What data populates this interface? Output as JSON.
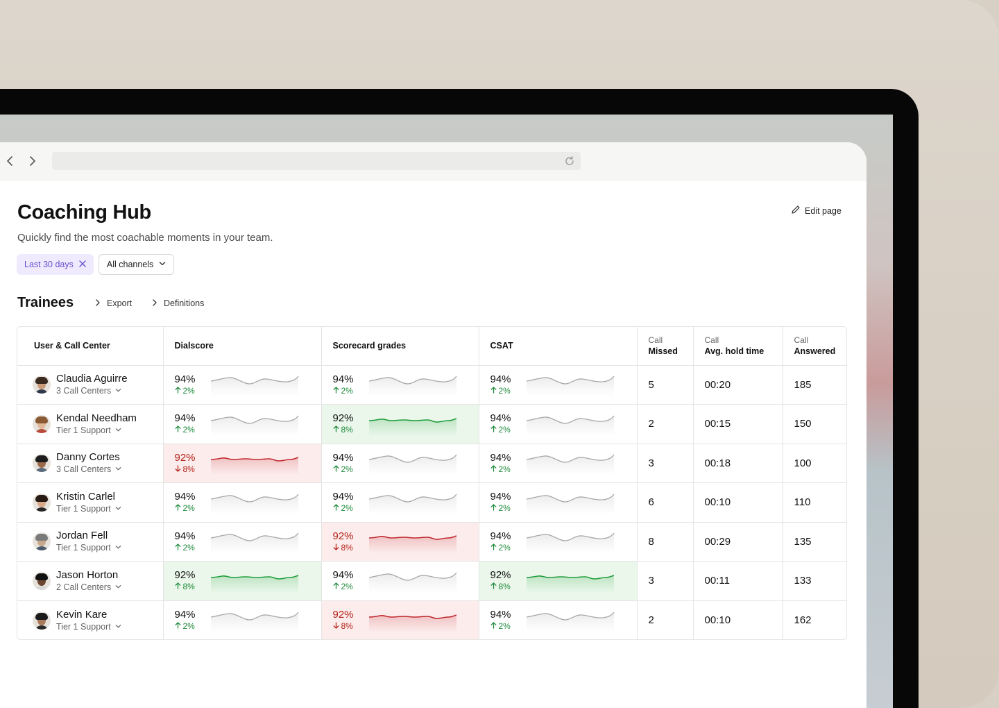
{
  "page": {
    "title": "Coaching Hub",
    "subtitle": "Quickly find the most coachable moments in your team.",
    "edit_label": "Edit page"
  },
  "filters": {
    "date_label": "Last 30 days",
    "channel_label": "All channels"
  },
  "section": {
    "title": "Trainees",
    "export_label": "Export",
    "definitions_label": "Definitions"
  },
  "table": {
    "headers": {
      "user": "User & Call Center",
      "dialscore": "Dialscore",
      "scorecard": "Scorecard grades",
      "csat": "CSAT",
      "missed_top": "Call",
      "missed_bottom": "Missed",
      "hold_top": "Call",
      "hold_bottom": "Avg. hold time",
      "answered_top": "Call",
      "answered_bottom": "Answered"
    },
    "rows": [
      {
        "name": "Claudia Aguirre",
        "team": "3 Call Centers",
        "dial": {
          "value": "94%",
          "delta": "2%",
          "trend": "up",
          "state": "neutral"
        },
        "score": {
          "value": "94%",
          "delta": "2%",
          "trend": "up",
          "state": "neutral"
        },
        "csat": {
          "value": "94%",
          "delta": "2%",
          "trend": "up",
          "state": "neutral"
        },
        "missed": "5",
        "hold": "00:20",
        "answered": "185"
      },
      {
        "name": "Kendal Needham",
        "team": "Tier 1 Support",
        "dial": {
          "value": "94%",
          "delta": "2%",
          "trend": "up",
          "state": "neutral"
        },
        "score": {
          "value": "92%",
          "delta": "8%",
          "trend": "up",
          "state": "good"
        },
        "csat": {
          "value": "94%",
          "delta": "2%",
          "trend": "up",
          "state": "neutral"
        },
        "missed": "2",
        "hold": "00:15",
        "answered": "150"
      },
      {
        "name": "Danny Cortes",
        "team": "3 Call Centers",
        "dial": {
          "value": "92%",
          "delta": "8%",
          "trend": "down",
          "state": "bad"
        },
        "score": {
          "value": "94%",
          "delta": "2%",
          "trend": "up",
          "state": "neutral"
        },
        "csat": {
          "value": "94%",
          "delta": "2%",
          "trend": "up",
          "state": "neutral"
        },
        "missed": "3",
        "hold": "00:18",
        "answered": "100"
      },
      {
        "name": "Kristin Carlel",
        "team": "Tier 1 Support",
        "dial": {
          "value": "94%",
          "delta": "2%",
          "trend": "up",
          "state": "neutral"
        },
        "score": {
          "value": "94%",
          "delta": "2%",
          "trend": "up",
          "state": "neutral"
        },
        "csat": {
          "value": "94%",
          "delta": "2%",
          "trend": "up",
          "state": "neutral"
        },
        "missed": "6",
        "hold": "00:10",
        "answered": "110"
      },
      {
        "name": "Jordan Fell",
        "team": "Tier 1 Support",
        "dial": {
          "value": "94%",
          "delta": "2%",
          "trend": "up",
          "state": "neutral"
        },
        "score": {
          "value": "92%",
          "delta": "8%",
          "trend": "down",
          "state": "bad"
        },
        "csat": {
          "value": "94%",
          "delta": "2%",
          "trend": "up",
          "state": "neutral"
        },
        "missed": "8",
        "hold": "00:29",
        "answered": "135"
      },
      {
        "name": "Jason Horton",
        "team": "2 Call Centers",
        "dial": {
          "value": "92%",
          "delta": "8%",
          "trend": "up",
          "state": "good"
        },
        "score": {
          "value": "94%",
          "delta": "2%",
          "trend": "up",
          "state": "neutral"
        },
        "csat": {
          "value": "92%",
          "delta": "8%",
          "trend": "up",
          "state": "good"
        },
        "missed": "3",
        "hold": "00:11",
        "answered": "133"
      },
      {
        "name": "Kevin Kare",
        "team": "Tier 1 Support",
        "dial": {
          "value": "94%",
          "delta": "2%",
          "trend": "up",
          "state": "neutral"
        },
        "score": {
          "value": "92%",
          "delta": "8%",
          "trend": "down",
          "state": "bad"
        },
        "csat": {
          "value": "94%",
          "delta": "2%",
          "trend": "up",
          "state": "neutral"
        },
        "missed": "2",
        "hold": "00:10",
        "answered": "162"
      }
    ]
  },
  "colors": {
    "good_line": "#1f9d3a",
    "bad_line": "#c0282d",
    "neutral_line": "#a8a8a8",
    "accent": "#6a4fd0"
  },
  "icons": {
    "back": "chevron-left-icon",
    "forward": "chevron-right-icon",
    "reload": "reload-icon",
    "edit": "pencil-icon",
    "remove": "close-icon",
    "dropdown": "chevron-down-icon",
    "link": "chevron-right-icon",
    "up": "arrow-up-icon",
    "down": "arrow-down-icon"
  }
}
